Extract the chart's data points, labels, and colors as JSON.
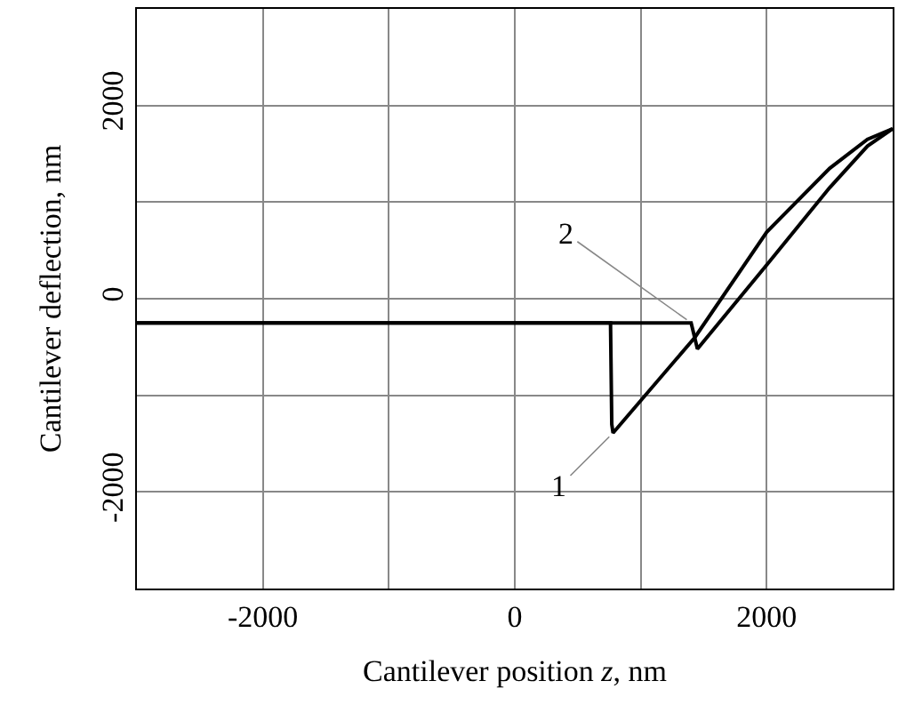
{
  "chart_data": {
    "type": "line",
    "xlabel": "Cantilever position $_{}$z, nm",
    "ylabel": "Cantilever deflection, nm",
    "series": [
      {
        "name": "1",
        "color": "#000000",
        "x": [
          -3000,
          760,
          770,
          780,
          1430,
          2000,
          2500,
          2800,
          3000
        ],
        "values": [
          -250,
          -250,
          -1300,
          -1390,
          -400,
          690,
          1350,
          1650,
          1760
        ]
      },
      {
        "name": "2",
        "color": "#000000",
        "x": [
          -3000,
          1400,
          1450,
          2000,
          2500,
          2800,
          3000
        ],
        "values": [
          -250,
          -250,
          -520,
          350,
          1150,
          1580,
          1760
        ]
      }
    ],
    "xlim": [
      -3000,
      3000
    ],
    "ylim": [
      -3000,
      3000
    ],
    "xticks": [
      {
        "value": -3000,
        "label": null
      },
      -2000,
      {
        "value": -1000,
        "label": null
      },
      0,
      {
        "value": 1000,
        "label": null
      },
      2000,
      {
        "value": 3000,
        "label": null
      }
    ],
    "yticks": [
      {
        "value": -3000,
        "label": null
      },
      -2000,
      {
        "value": -1000,
        "label": null
      },
      0,
      {
        "value": 1000,
        "label": null
      },
      2000,
      {
        "value": 3000,
        "label": null
      }
    ],
    "grid": true,
    "marker": "none",
    "line_style": "solid",
    "legend": false
  }
}
